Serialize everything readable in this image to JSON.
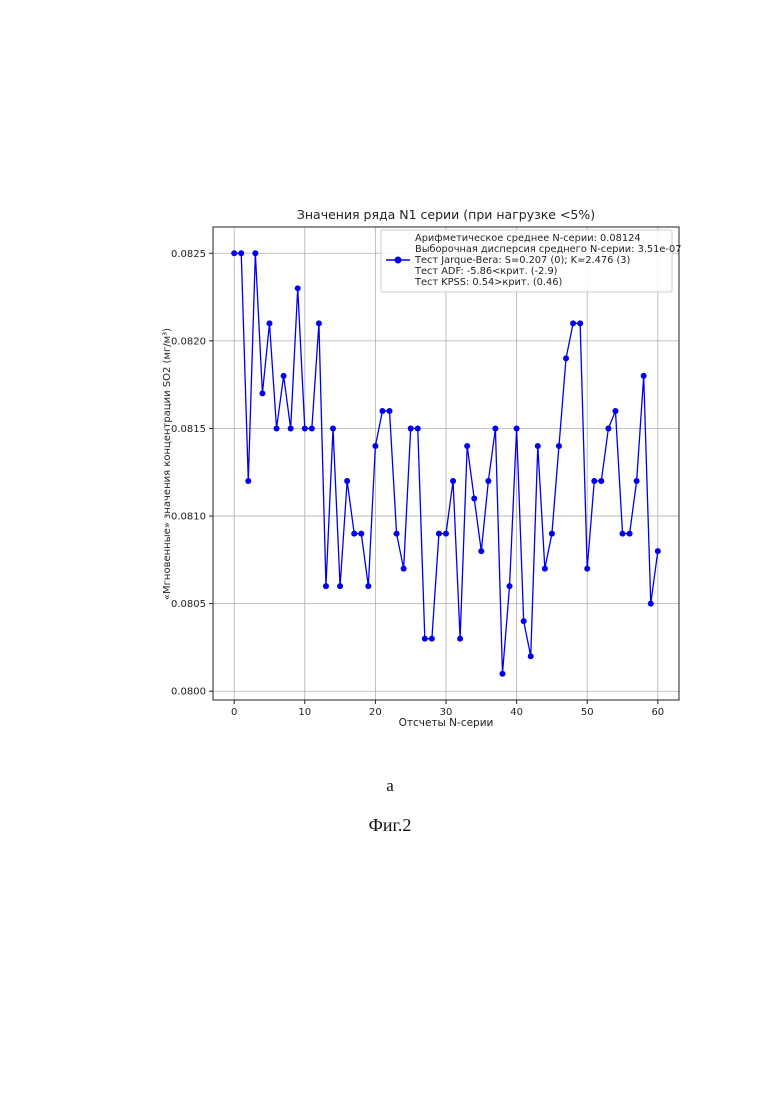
{
  "caption_letter": "а",
  "figure_label": "Фиг.2",
  "chart_data": {
    "type": "line",
    "title": "Значения ряда N1 серии (при нагрузке <5%)",
    "xlabel": "Отсчеты N-серии",
    "ylabel": "«Мгновенные» значения концентрации SO2 (мг/м³)",
    "xlim": [
      -3,
      63
    ],
    "ylim": [
      0.07995,
      0.08265
    ],
    "xticks": [
      0,
      10,
      20,
      30,
      40,
      50,
      60
    ],
    "yticks": [
      0.08,
      0.0805,
      0.081,
      0.0815,
      0.082,
      0.0825
    ],
    "ytick_labels": [
      "0.0800",
      "0.0805",
      "0.0810",
      "0.0815",
      "0.0820",
      "0.0825"
    ],
    "grid": true,
    "legend_position": "top-right",
    "legend_lines": [
      "Арифметическое среднее N-серии: 0.08124",
      "Выборочная дисперсия среднего N-серии: 3.51e-07",
      "Тест Jarque-Bera: S=0.207 (0); K=2.476 (3)",
      "Тест ADF: -5.86<крит. (-2.9)",
      "Тест KPSS: 0.54>крит. (0.46)"
    ],
    "series": [
      {
        "color": "#0000ee",
        "x": [
          0,
          1,
          2,
          3,
          4,
          5,
          6,
          7,
          8,
          9,
          10,
          11,
          12,
          13,
          14,
          15,
          16,
          17,
          18,
          19,
          20,
          21,
          22,
          23,
          24,
          25,
          26,
          27,
          28,
          29,
          30,
          31,
          32,
          33,
          34,
          35,
          36,
          37,
          38,
          39,
          40,
          41,
          42,
          43,
          44,
          45,
          46,
          47,
          48,
          49,
          50,
          51,
          52,
          53,
          54,
          55,
          56,
          57,
          58,
          59,
          60
        ],
        "values": [
          0.0825,
          0.0825,
          0.0812,
          0.0825,
          0.0817,
          0.0821,
          0.0815,
          0.0818,
          0.0815,
          0.0823,
          0.0815,
          0.0815,
          0.0821,
          0.0806,
          0.0815,
          0.0806,
          0.0812,
          0.0809,
          0.0809,
          0.0806,
          0.0814,
          0.0816,
          0.0816,
          0.0809,
          0.0807,
          0.0815,
          0.0815,
          0.0803,
          0.0803,
          0.0809,
          0.0809,
          0.0812,
          0.0803,
          0.0814,
          0.0811,
          0.0808,
          0.0812,
          0.0815,
          0.0801,
          0.0806,
          0.0815,
          0.0804,
          0.0802,
          0.0814,
          0.0807,
          0.0809,
          0.0814,
          0.0819,
          0.0821,
          0.0821,
          0.0807,
          0.0812,
          0.0812,
          0.0815,
          0.0816,
          0.0809,
          0.0809,
          0.0812,
          0.0818,
          0.0805,
          0.0808
        ]
      }
    ]
  }
}
